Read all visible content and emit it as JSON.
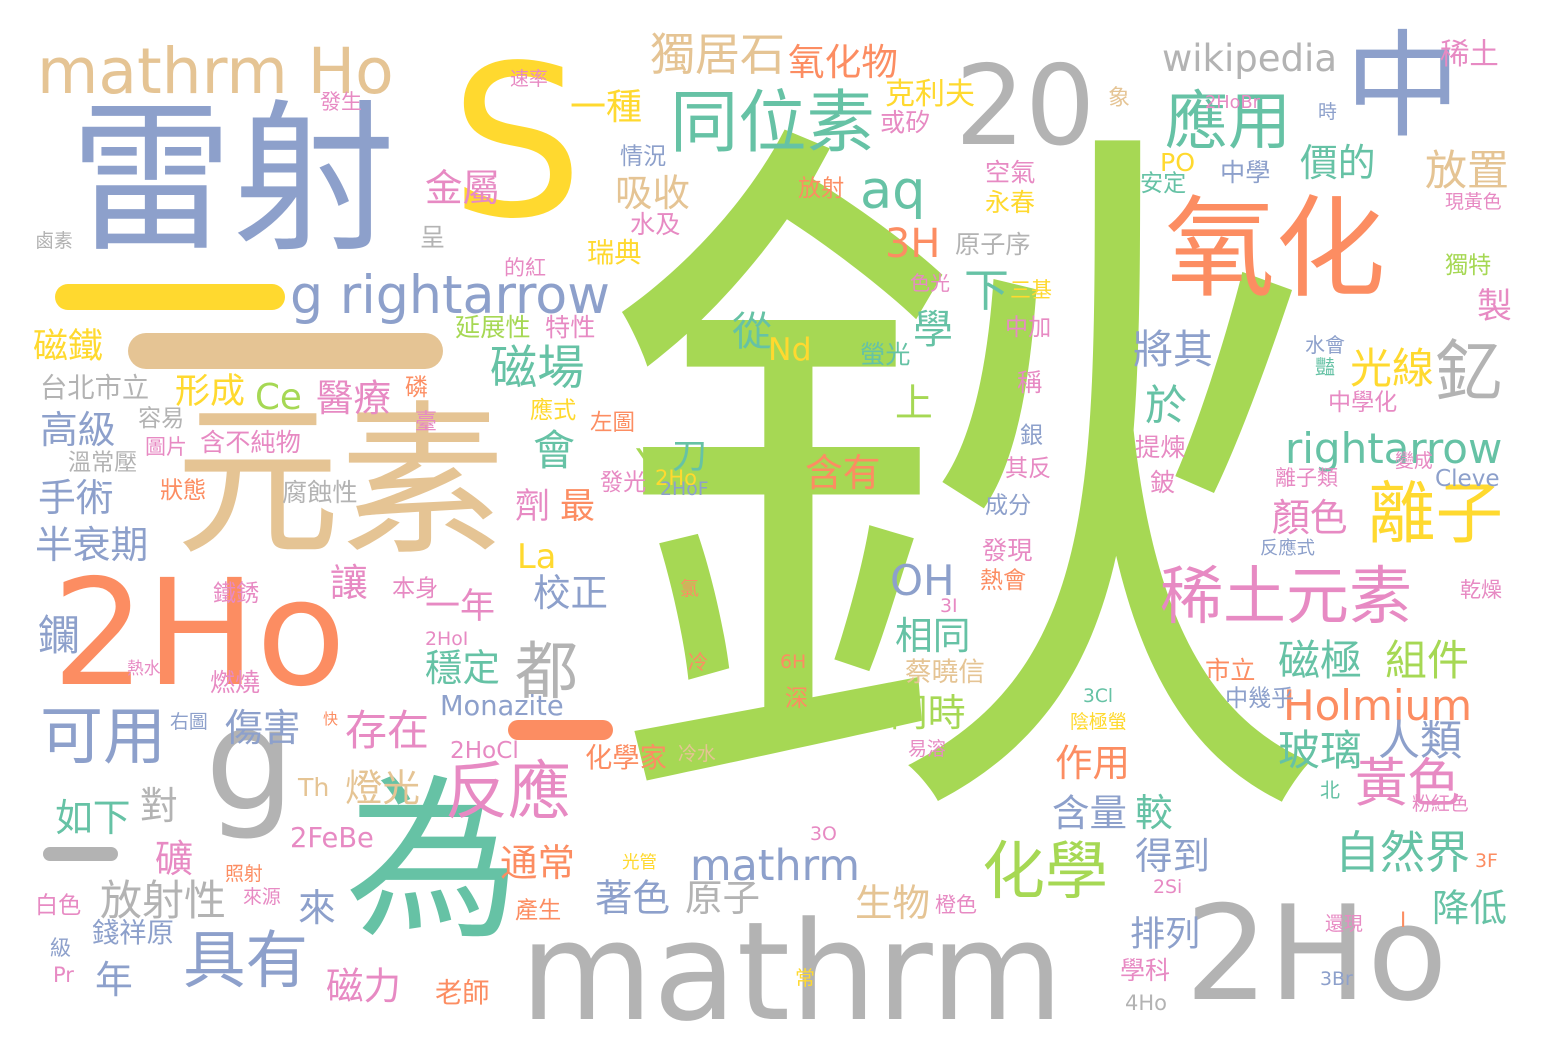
{
  "palette": {
    "green": "#a6d854",
    "yellow": "#ffd92f",
    "blue": "#8da0cb",
    "orange": "#fc8d62",
    "teal": "#66c2a5",
    "tan": "#e5c494",
    "gray": "#b3b3b3",
    "pink": "#e78ac3"
  },
  "words": [
    "鈥",
    "S",
    "雷射",
    "中",
    "20",
    "mathrm Ho",
    "一",
    "一",
    "元素",
    "2Ho",
    "g",
    "為",
    "mathrm",
    "2Ho",
    "氧化",
    "同位素",
    "應用",
    "aq",
    "g rightarrow",
    "獨居石",
    "氧化物",
    "wikipedia",
    "稀土",
    "離子",
    "稀土元素",
    "rightarrow",
    "反應",
    "化學",
    "具有",
    "可用",
    "都",
    "一",
    "Holmium",
    "黃色",
    "自然界",
    "mathrm",
    "磁極",
    "組件",
    "玻璃",
    "人類",
    "吸收",
    "金屬",
    "一種",
    "克利夫",
    "價的",
    "放置",
    "3H",
    "永春",
    "下",
    "學",
    "從",
    "Nd",
    "磁場",
    "光線",
    "於",
    "會",
    "Y",
    "刀",
    "釔",
    "將其",
    "製",
    "磁鐵",
    "形成",
    "Ce",
    "醫療",
    "上",
    "高級",
    "手術",
    "半衰期",
    "OH",
    "含有",
    "顏色",
    "最",
    "劑",
    "La",
    "校正",
    "一年",
    "讓",
    "相同",
    "穩定",
    "存在",
    "傷害",
    "同時",
    "作用",
    "含量",
    "較",
    "得到",
    "如下",
    "對",
    "礦",
    "燈光",
    "通常",
    "著色",
    "原子",
    "生物",
    "放射性",
    "來",
    "磁力",
    "年",
    "排列",
    "降低",
    "錢祥原",
    "老師",
    "蔡曉信",
    "2HoCl",
    "Monazite",
    "化學家",
    "鑭",
    "2FeBe",
    "台北市立",
    "容易",
    "腐蝕性",
    "溫常壓",
    "狀態",
    "含不純物",
    "圖片",
    "磷",
    "臺",
    "應式",
    "左圖",
    "特性",
    "延展性",
    "瑞典",
    "鹵素",
    "呈",
    "的紅",
    "水及",
    "情況",
    "速率",
    "發生",
    "時",
    "象",
    "PO",
    "安定",
    "中學",
    "空氣",
    "放射",
    "或矽",
    "現黃色",
    "獨特",
    "三基",
    "中加",
    "色光",
    "原子序",
    "螢光",
    "稱",
    "水會",
    "豔",
    "中學化",
    "提煉",
    "鈹",
    "銀",
    "其反",
    "成分",
    "發現",
    "熱會",
    "Cleve",
    "變成",
    "離子類",
    "反應式",
    "乾燥",
    "2HoF",
    "發光",
    "3I",
    "氯",
    "6H",
    "冷",
    "深",
    "快",
    "熱水",
    "燃燒",
    "鐵銹",
    "本身",
    "市立",
    "中幾乎",
    "3Cl",
    "陰極螢",
    "易溶",
    "冷水",
    "北",
    "粉紅色",
    "3O",
    "光管",
    "Th",
    "2Si",
    "3F",
    "照射",
    "來源",
    "白色",
    "產生",
    "學科",
    "常",
    "4Ho",
    "3Br",
    "還現",
    "級",
    "Pr",
    "橙色",
    "右圖",
    "2HoI",
    "2HoBr",
    "2Ho",
    "I"
  ]
}
